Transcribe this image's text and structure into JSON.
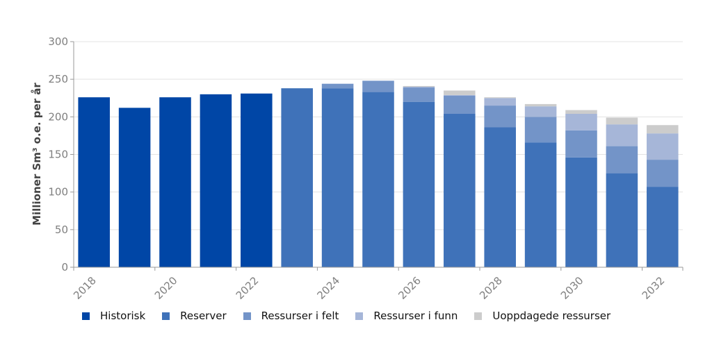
{
  "chart_data": {
    "type": "bar",
    "stacked": true,
    "title": "",
    "xlabel": "",
    "ylabel": "Millioner Sm³ o.e. per år",
    "ylim": [
      0,
      300
    ],
    "yticks": [
      "0",
      "50",
      "100",
      "150",
      "200",
      "250",
      "300"
    ],
    "xticks": [
      "2018",
      "2020",
      "2022",
      "2024",
      "2026",
      "2028",
      "2030",
      "2032"
    ],
    "grid": true,
    "legend_position": "bottom",
    "categories": [
      2018,
      2019,
      2020,
      2021,
      2022,
      2023,
      2024,
      2025,
      2026,
      2027,
      2028,
      2029,
      2030,
      2031,
      2032
    ],
    "series": [
      {
        "name": "Historisk",
        "color": "#0046a6",
        "values": [
          226,
          212,
          226,
          230,
          231,
          0,
          0,
          0,
          0,
          0,
          0,
          0,
          0,
          0,
          0
        ]
      },
      {
        "name": "Reserver",
        "color": "#3f72b9",
        "values": [
          0,
          0,
          0,
          0,
          0,
          238,
          238,
          233,
          220,
          204,
          186,
          166,
          146,
          125,
          107
        ]
      },
      {
        "name": "Ressurser i felt",
        "color": "#7394c8",
        "values": [
          0,
          0,
          0,
          0,
          0,
          0,
          6,
          15,
          19,
          24,
          29,
          34,
          36,
          36,
          36
        ]
      },
      {
        "name": "Ressurser i funn",
        "color": "#a6b6d8",
        "values": [
          0,
          0,
          0,
          0,
          0,
          0,
          0,
          0,
          1,
          1,
          10,
          14,
          22,
          29,
          35
        ]
      },
      {
        "name": "Uoppdagede ressurser",
        "color": "#cccccc",
        "values": [
          0,
          0,
          0,
          0,
          0,
          0,
          0,
          0,
          1,
          6,
          1,
          3,
          5,
          9,
          11
        ]
      }
    ]
  }
}
